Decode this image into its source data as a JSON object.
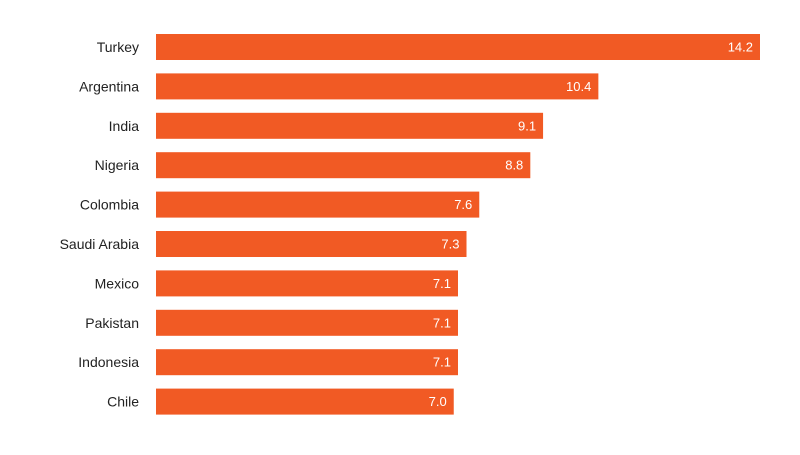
{
  "chart_data": {
    "type": "bar",
    "orientation": "horizontal",
    "categories": [
      "Turkey",
      "Argentina",
      "India",
      "Nigeria",
      "Colombia",
      "Saudi Arabia",
      "Mexico",
      "Pakistan",
      "Indonesia",
      "Chile"
    ],
    "values": [
      14.2,
      10.4,
      9.1,
      8.8,
      7.6,
      7.3,
      7.1,
      7.1,
      7.1,
      7.0
    ],
    "value_labels": [
      "14.2",
      "10.4",
      "9.1",
      "8.8",
      "7.6",
      "7.3",
      "7.1",
      "7.1",
      "7.1",
      "7.0"
    ],
    "title": "",
    "xlabel": "",
    "ylabel": "",
    "xlim": [
      0,
      14.2
    ],
    "grid": false,
    "legend": "none",
    "bar_color": "#F15A24",
    "label_color": "#ffffff",
    "category_label_color": "#222222"
  }
}
